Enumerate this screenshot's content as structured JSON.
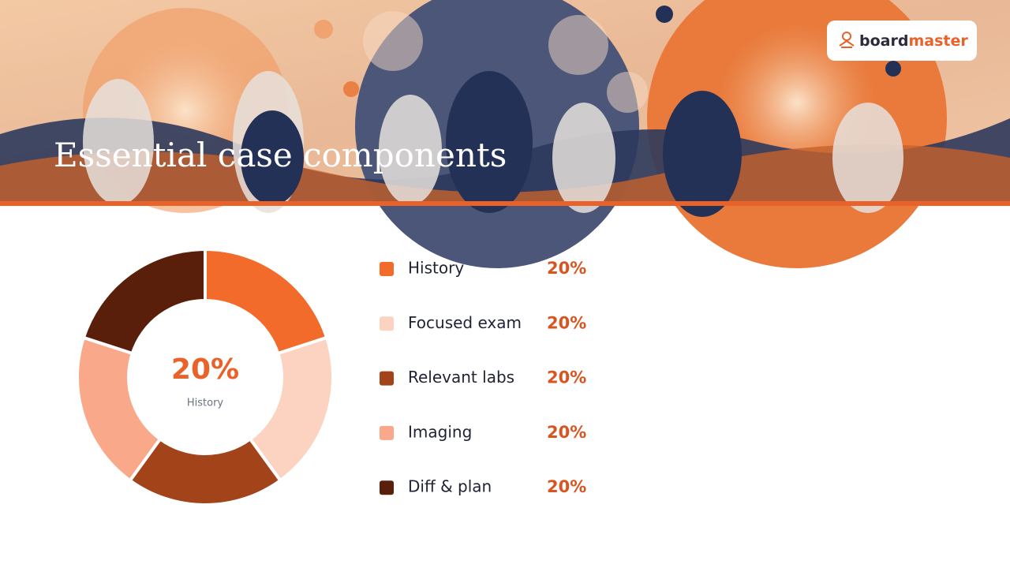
{
  "chart_data": {
    "type": "pie",
    "donut": true,
    "title": "Essential case components",
    "brand": [
      "board",
      "master"
    ],
    "categories": [
      "History",
      "Focused exam",
      "Relevant labs",
      "Imaging",
      "Diff & plan"
    ],
    "values": [
      20,
      20,
      20,
      20,
      20
    ],
    "value_labels": [
      "20%",
      "20%",
      "20%",
      "20%",
      "20%"
    ],
    "colors": [
      "#f26b2a",
      "#fcd3c1",
      "#a3431a",
      "#f9a98a",
      "#5a1f0a"
    ],
    "highlight": 0
  }
}
